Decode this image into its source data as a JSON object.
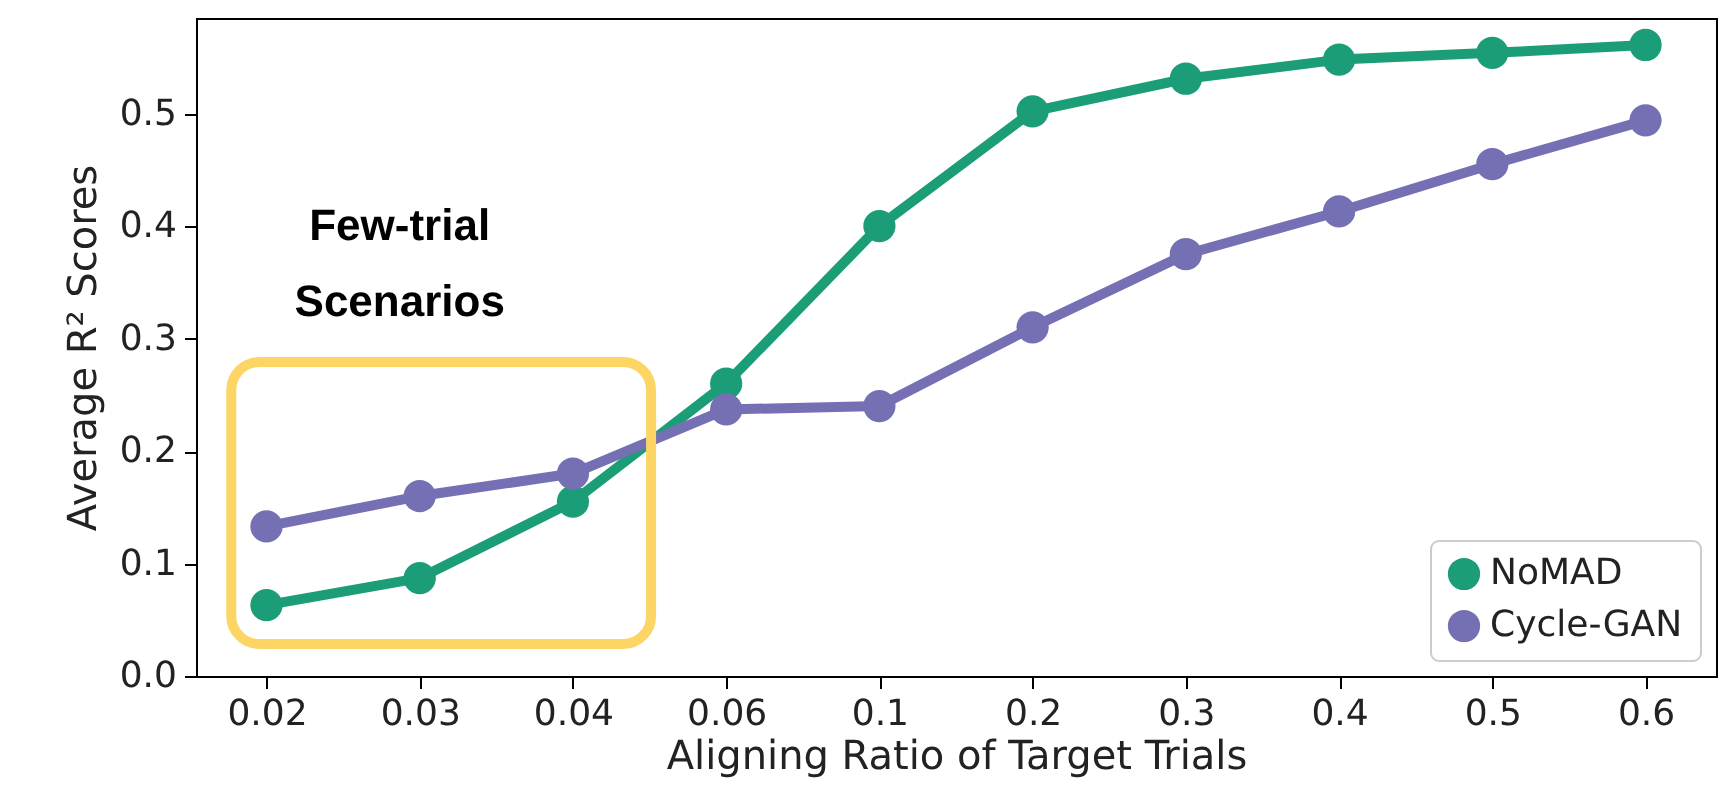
{
  "chart_data": {
    "type": "line",
    "xlabel": "Aligning Ratio of Target Trials",
    "ylabel": "Average R² Scores",
    "categories": [
      "0.02",
      "0.03",
      "0.04",
      "0.06",
      "0.1",
      "0.2",
      "0.3",
      "0.4",
      "0.5",
      "0.6"
    ],
    "series": [
      {
        "name": "NoMAD",
        "color": "#1b9e77",
        "values": [
          0.063,
          0.087,
          0.155,
          0.26,
          0.4,
          0.502,
          0.531,
          0.548,
          0.554,
          0.561
        ]
      },
      {
        "name": "Cycle-GAN",
        "color": "#7570b3",
        "values": [
          0.133,
          0.16,
          0.18,
          0.237,
          0.24,
          0.31,
          0.375,
          0.413,
          0.455,
          0.494
        ]
      }
    ],
    "ylim": [
      0,
      0.585
    ],
    "yticks": [
      {
        "value": 0,
        "label": "0.0"
      },
      0.1,
      0.2,
      0.3,
      0.4,
      0.5
    ],
    "annotations": [
      "Few-trial Scenarios"
    ],
    "grid": false,
    "legend": "bottom right",
    "marker": "circle",
    "line_style": "solid"
  }
}
